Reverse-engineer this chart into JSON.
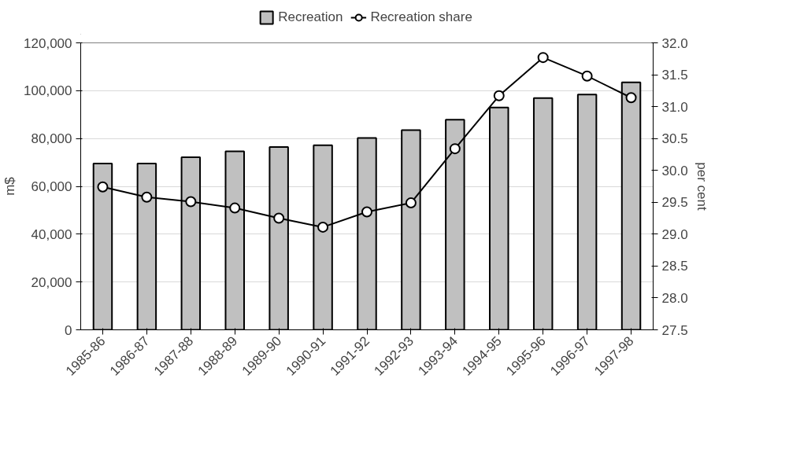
{
  "chart_data": {
    "type": "bar",
    "ylabel": "m$",
    "y2label": "per cent",
    "categories": [
      "1985-86",
      "1986-87",
      "1987-88",
      "1988-89",
      "1989-90",
      "1990-91",
      "1991-92",
      "1992-93",
      "1993-94",
      "1994-95",
      "1995-96",
      "1996-97",
      "1997-98"
    ],
    "series": [
      {
        "name": "Recreation",
        "color": "#c0c0c0",
        "values": [
          69500,
          69500,
          72200,
          74600,
          76400,
          77200,
          80200,
          83500,
          87900,
          93000,
          96900,
          98400,
          103500
        ]
      },
      {
        "name": "Recreation share",
        "type": "line",
        "axis": "y2",
        "color": "#000000",
        "marker": "circle",
        "values": [
          29.74,
          29.58,
          29.51,
          29.41,
          29.25,
          29.11,
          29.35,
          29.49,
          30.34,
          31.17,
          31.77,
          31.48,
          31.14
        ]
      }
    ],
    "ylim": [
      0,
      120000
    ],
    "yticks": [
      0,
      {
        "value": 20000,
        "label": "20,000"
      },
      {
        "value": 40000,
        "label": "40,000"
      },
      {
        "value": 60000,
        "label": "60,000"
      },
      {
        "value": 80000,
        "label": "80,000"
      },
      {
        "value": 100000,
        "label": "100,000"
      },
      {
        "value": 120000,
        "label": "120,000"
      }
    ],
    "y2lim": [
      27.5,
      32
    ],
    "y2ticks": [
      27.5,
      {
        "value": 28,
        "label": "28.0"
      },
      28.5,
      {
        "value": 29,
        "label": "29.0"
      },
      29.5,
      {
        "value": 30,
        "label": "30.0"
      },
      30.5,
      {
        "value": 31,
        "label": "31.0"
      },
      31.5,
      {
        "value": 32,
        "label": "32.0"
      }
    ],
    "grid": "y",
    "legend": "top"
  }
}
